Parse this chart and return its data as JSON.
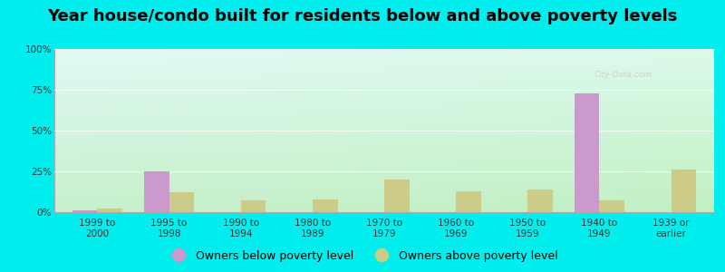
{
  "title": "Year house/condo built for residents below and above poverty levels",
  "categories": [
    "1999 to\n2000",
    "1995 to\n1998",
    "1990 to\n1994",
    "1980 to\n1989",
    "1970 to\n1979",
    "1960 to\n1969",
    "1950 to\n1959",
    "1940 to\n1949",
    "1939 or\nearlier"
  ],
  "below_poverty": [
    1,
    25,
    0,
    0,
    0,
    0,
    0,
    73,
    0
  ],
  "above_poverty": [
    2,
    12,
    7,
    8,
    20,
    13,
    14,
    7,
    26
  ],
  "below_color": "#cc99cc",
  "above_color": "#cccc88",
  "ylim": [
    0,
    100
  ],
  "yticks": [
    0,
    25,
    50,
    75,
    100
  ],
  "ytick_labels": [
    "0%",
    "25%",
    "50%",
    "75%",
    "100%"
  ],
  "outer_background": "#00eeee",
  "bar_width": 0.35,
  "legend_below_label": "Owners below poverty level",
  "legend_above_label": "Owners above poverty level",
  "title_fontsize": 13,
  "tick_fontsize": 7.5,
  "legend_fontsize": 9,
  "grid_color": "#ddddcc",
  "bg_top_left": "#b0f0f0",
  "bg_bottom_right": "#c8f0c8"
}
